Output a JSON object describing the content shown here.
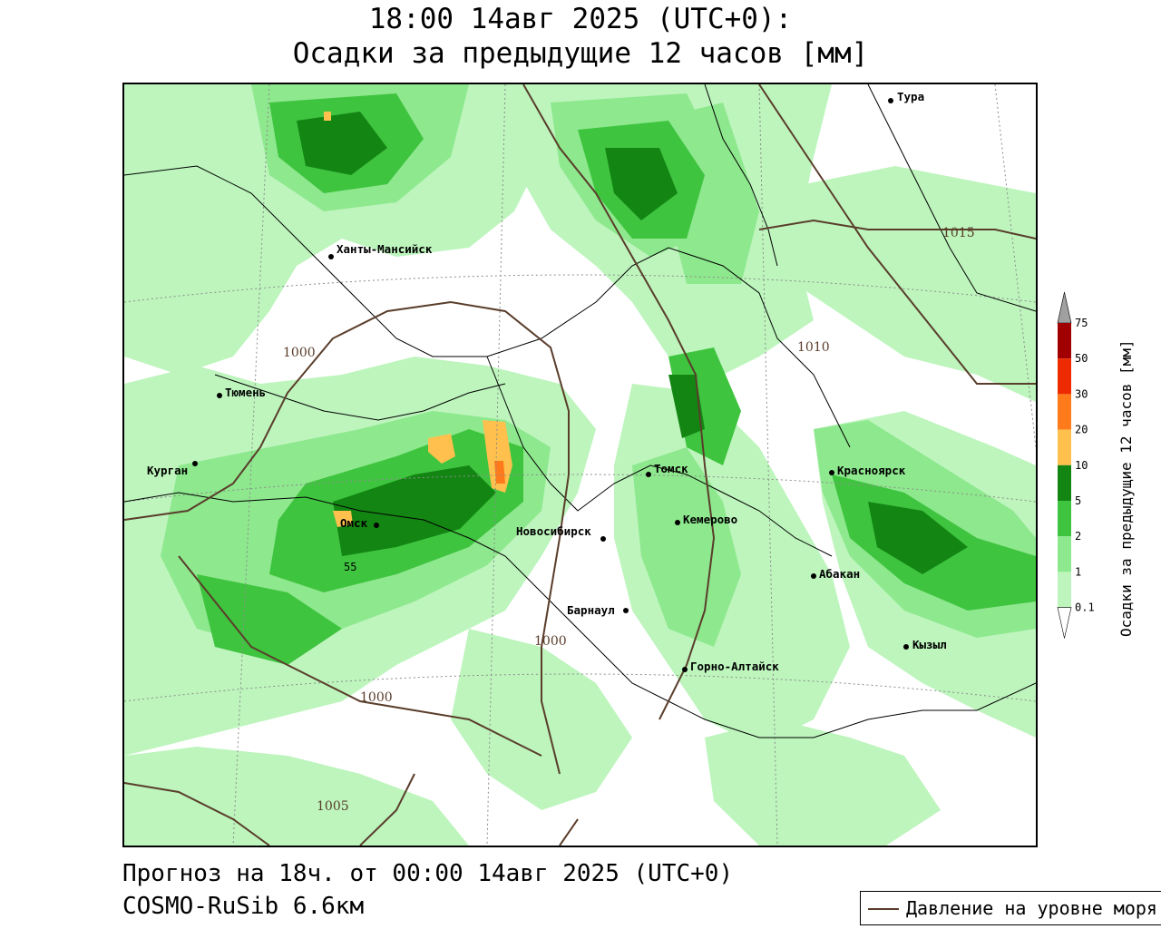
{
  "title": {
    "line1": "18:00 14авг 2025 (UTC+0):",
    "line2": "Осадки за предыдущие 12 часов [мм]"
  },
  "footer": {
    "forecast": "Прогноз на 18ч. от 00:00 14авг 2025 (UTC+0)",
    "model": "COSMO-RuSib 6.6км"
  },
  "legend": {
    "pressure_label": "Давление на уровне моря",
    "pressure_color": "#5a3d2b"
  },
  "colorbar": {
    "title": "Осадки за предыдущие 12 часов [мм]",
    "ticks": [
      "0.1",
      "1",
      "2",
      "5",
      "10",
      "20",
      "30",
      "50",
      "75"
    ],
    "colors": [
      "#bdf5bd",
      "#8ee88e",
      "#3fc43f",
      "#138513",
      "#ffc04d",
      "#ff7a1a",
      "#ee2a00",
      "#a00000"
    ],
    "over_color": "#a0a0a0",
    "under_color": "#ffffff"
  },
  "cities": [
    {
      "name": "Тура"
    },
    {
      "name": "Ханты-Мансийск"
    },
    {
      "name": "Тюмень"
    },
    {
      "name": "Курган"
    },
    {
      "name": "Омск"
    },
    {
      "name": "Новосибирск"
    },
    {
      "name": "Томск"
    },
    {
      "name": "Кемерово"
    },
    {
      "name": "Красноярск"
    },
    {
      "name": "Абакан"
    },
    {
      "name": "Барнаул"
    },
    {
      "name": "Кызыл"
    },
    {
      "name": "Горно-Алтайск"
    }
  ],
  "isobars": [
    {
      "label": "1015"
    },
    {
      "label": "1010"
    },
    {
      "label": "1000"
    },
    {
      "label": "1000"
    },
    {
      "label": "1000"
    },
    {
      "label": "1005"
    }
  ],
  "other_labels": {
    "lat_tick": "55"
  }
}
